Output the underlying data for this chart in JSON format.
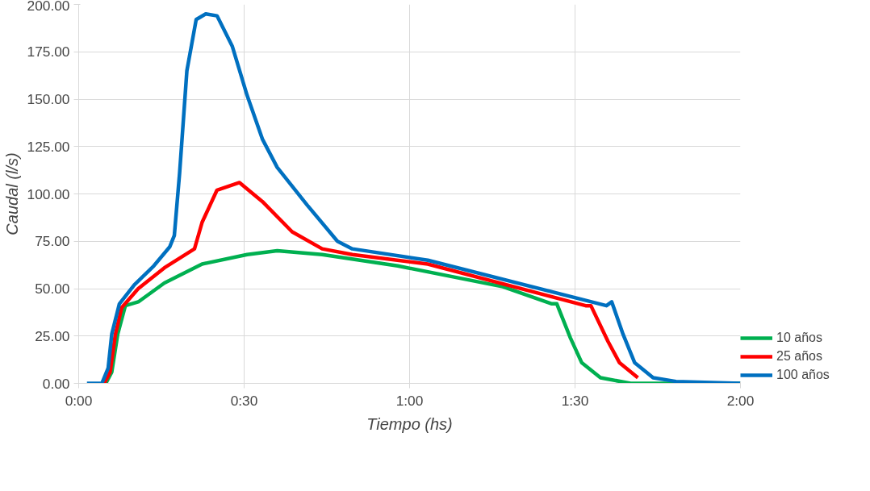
{
  "chart_data": {
    "type": "line",
    "xlabel": "Tiempo (hs)",
    "ylabel": "Caudal (l/s)",
    "xlim": [
      0,
      2
    ],
    "xticks": [
      {
        "value": 0,
        "label": "0:00"
      },
      {
        "value": 0.5,
        "label": "0:30"
      },
      {
        "value": 1,
        "label": "1:00"
      },
      {
        "value": 1.5,
        "label": "1:30"
      },
      {
        "value": 2,
        "label": "2:00"
      }
    ],
    "ylim": [
      0,
      200
    ],
    "yticks": [
      {
        "value": 0,
        "label": "0.00"
      },
      {
        "value": 25,
        "label": "25.00"
      },
      {
        "value": 50,
        "label": "50.00"
      },
      {
        "value": 75,
        "label": "75.00"
      },
      {
        "value": 100,
        "label": "100.00"
      },
      {
        "value": 125,
        "label": "125.00"
      },
      {
        "value": 150,
        "label": "150.00"
      },
      {
        "value": 175,
        "label": "175.00"
      },
      {
        "value": 200,
        "label": "200.00"
      }
    ],
    "grid": true,
    "legend": "bottom right",
    "line_style": "solid",
    "series": [
      {
        "name": "10 años",
        "color": "#00b050",
        "x": [
          0.082,
          0.1,
          0.118,
          0.141,
          0.18,
          0.259,
          0.373,
          0.509,
          0.6,
          0.736,
          0.964,
          1.282,
          1.43,
          1.445,
          1.486,
          1.52,
          1.577,
          1.668,
          2
        ],
        "values": [
          0,
          6,
          26,
          41,
          43,
          53,
          63,
          68,
          70,
          68,
          62,
          51,
          42,
          42,
          24,
          11,
          3,
          0,
          0
        ]
      },
      {
        "name": "25 años",
        "color": "#ff0000",
        "x": [
          0.077,
          0.095,
          0.111,
          0.13,
          0.18,
          0.259,
          0.35,
          0.373,
          0.418,
          0.486,
          0.555,
          0.645,
          0.736,
          0.827,
          1.055,
          1.532,
          1.548,
          1.6,
          1.634,
          1.69
        ],
        "values": [
          0,
          6,
          26,
          40,
          50,
          61,
          71,
          85,
          102,
          106,
          96,
          80,
          71,
          68,
          63,
          41,
          41,
          22,
          11,
          3
        ]
      },
      {
        "name": "100 años",
        "color": "#0070c0",
        "x": [
          0.025,
          0.07,
          0.089,
          0.1,
          0.123,
          0.168,
          0.227,
          0.275,
          0.289,
          0.305,
          0.327,
          0.355,
          0.384,
          0.418,
          0.464,
          0.509,
          0.555,
          0.6,
          0.691,
          0.782,
          0.827,
          1.055,
          1.595,
          1.611,
          1.645,
          1.68,
          1.736,
          1.805,
          2
        ],
        "values": [
          0,
          0,
          8,
          26,
          42,
          52,
          62,
          72,
          78,
          111,
          165,
          192,
          195,
          194,
          178,
          152,
          129,
          114,
          94,
          75,
          71,
          65,
          41,
          43,
          26,
          11,
          3,
          1,
          0
        ]
      }
    ]
  }
}
